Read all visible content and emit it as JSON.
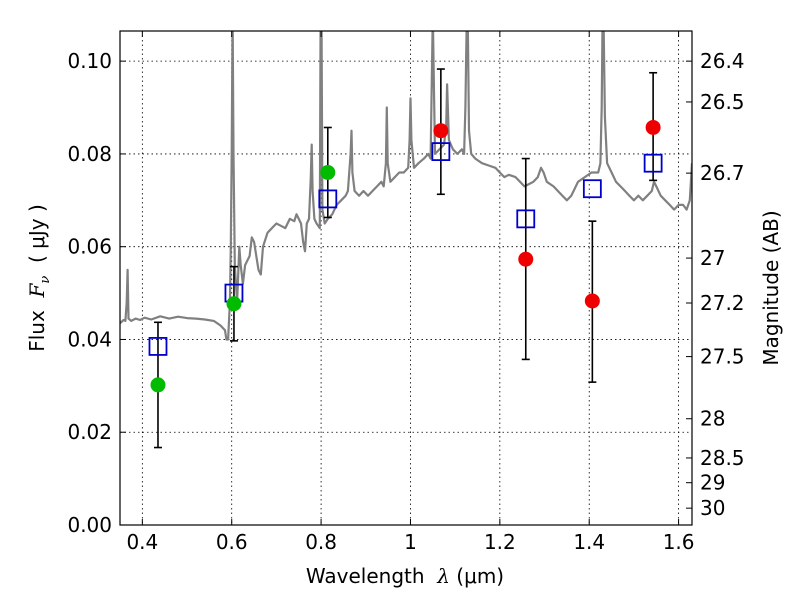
{
  "chart_data": {
    "type": "scatter",
    "xlabel": "Wavelength  λ (μm)",
    "ylabel": "Flux  F_ν  ( μJy )",
    "ylabel_parts": {
      "prefix": "Flux  ",
      "symbol": "F",
      "subscript": "ν",
      "suffix": "  ( μJy )"
    },
    "xlabel_parts": {
      "prefix": "Wavelength  ",
      "symbol": "λ",
      "suffix": " (μm)"
    },
    "y2label": "Magnitude (AB)",
    "xlim": [
      0.35,
      1.63
    ],
    "ylim": [
      0.0,
      0.1065
    ],
    "grid": true,
    "x_ticks": [
      {
        "value": 0.4,
        "label": "0.4"
      },
      {
        "value": 0.6,
        "label": "0.6"
      },
      {
        "value": 0.8,
        "label": "0.8"
      },
      {
        "value": 1.0,
        "label": "1"
      },
      {
        "value": 1.2,
        "label": "1.2"
      },
      {
        "value": 1.4,
        "label": "1.4"
      },
      {
        "value": 1.6,
        "label": "1.6"
      }
    ],
    "y_ticks": [
      {
        "value": 0.0,
        "label": "0.00"
      },
      {
        "value": 0.02,
        "label": "0.02"
      },
      {
        "value": 0.04,
        "label": "0.04"
      },
      {
        "value": 0.06,
        "label": "0.06"
      },
      {
        "value": 0.08,
        "label": "0.08"
      },
      {
        "value": 0.1,
        "label": "0.10"
      }
    ],
    "y2_ticks": [
      {
        "value": 26.4,
        "label": "26.4"
      },
      {
        "value": 26.5,
        "label": "26.5"
      },
      {
        "value": 26.7,
        "label": "26.7"
      },
      {
        "value": 27.0,
        "label": "27"
      },
      {
        "value": 27.2,
        "label": "27.2"
      },
      {
        "value": 27.5,
        "label": "27.5"
      },
      {
        "value": 28.0,
        "label": "28"
      },
      {
        "value": 28.5,
        "label": "28.5"
      },
      {
        "value": 29.0,
        "label": "29"
      },
      {
        "value": 30.0,
        "label": "30"
      }
    ],
    "series": [
      {
        "kind": "line",
        "color": "#808080",
        "points": [
          [
            0.35,
            0.0435
          ],
          [
            0.358,
            0.0442
          ],
          [
            0.362,
            0.044
          ],
          [
            0.365,
            0.048
          ],
          [
            0.367,
            0.055
          ],
          [
            0.369,
            0.0445
          ],
          [
            0.375,
            0.044
          ],
          [
            0.385,
            0.0445
          ],
          [
            0.395,
            0.0442
          ],
          [
            0.405,
            0.0447
          ],
          [
            0.42,
            0.0443
          ],
          [
            0.44,
            0.045
          ],
          [
            0.46,
            0.0445
          ],
          [
            0.48,
            0.0449
          ],
          [
            0.5,
            0.0446
          ],
          [
            0.52,
            0.0445
          ],
          [
            0.54,
            0.0443
          ],
          [
            0.56,
            0.044
          ],
          [
            0.575,
            0.043
          ],
          [
            0.585,
            0.042
          ],
          [
            0.588,
            0.04
          ],
          [
            0.592,
            0.04
          ],
          [
            0.596,
            0.048
          ],
          [
            0.598,
            0.06
          ],
          [
            0.6,
            0.08
          ],
          [
            0.602,
            0.11
          ],
          [
            0.604,
            0.08
          ],
          [
            0.607,
            0.056
          ],
          [
            0.612,
            0.048
          ],
          [
            0.617,
            0.06
          ],
          [
            0.62,
            0.056
          ],
          [
            0.625,
            0.052
          ],
          [
            0.63,
            0.056
          ],
          [
            0.64,
            0.058
          ],
          [
            0.645,
            0.062
          ],
          [
            0.65,
            0.061
          ],
          [
            0.655,
            0.058
          ],
          [
            0.66,
            0.055
          ],
          [
            0.665,
            0.054
          ],
          [
            0.67,
            0.06
          ],
          [
            0.68,
            0.063
          ],
          [
            0.69,
            0.064
          ],
          [
            0.7,
            0.065
          ],
          [
            0.71,
            0.0645
          ],
          [
            0.72,
            0.064
          ],
          [
            0.73,
            0.066
          ],
          [
            0.74,
            0.0655
          ],
          [
            0.745,
            0.067
          ],
          [
            0.75,
            0.066
          ],
          [
            0.755,
            0.065
          ],
          [
            0.76,
            0.061
          ],
          [
            0.764,
            0.059
          ],
          [
            0.768,
            0.065
          ],
          [
            0.773,
            0.066
          ],
          [
            0.777,
            0.075
          ],
          [
            0.779,
            0.082
          ],
          [
            0.781,
            0.072
          ],
          [
            0.785,
            0.066
          ],
          [
            0.79,
            0.065
          ],
          [
            0.797,
            0.064
          ],
          [
            0.799,
            0.11
          ],
          [
            0.801,
            0.11
          ],
          [
            0.803,
            0.068
          ],
          [
            0.808,
            0.065
          ],
          [
            0.815,
            0.066
          ],
          [
            0.825,
            0.067
          ],
          [
            0.835,
            0.069
          ],
          [
            0.845,
            0.07
          ],
          [
            0.855,
            0.071
          ],
          [
            0.86,
            0.072
          ],
          [
            0.866,
            0.08
          ],
          [
            0.868,
            0.085
          ],
          [
            0.87,
            0.076
          ],
          [
            0.875,
            0.072
          ],
          [
            0.885,
            0.071
          ],
          [
            0.895,
            0.072
          ],
          [
            0.905,
            0.071
          ],
          [
            0.915,
            0.072
          ],
          [
            0.925,
            0.073
          ],
          [
            0.935,
            0.074
          ],
          [
            0.94,
            0.073
          ],
          [
            0.945,
            0.078
          ],
          [
            0.947,
            0.09
          ],
          [
            0.949,
            0.078
          ],
          [
            0.955,
            0.074
          ],
          [
            0.965,
            0.075
          ],
          [
            0.975,
            0.076
          ],
          [
            0.985,
            0.076
          ],
          [
            0.995,
            0.077
          ],
          [
            0.998,
            0.083
          ],
          [
            1.0,
            0.092
          ],
          [
            1.002,
            0.083
          ],
          [
            1.008,
            0.077
          ],
          [
            1.018,
            0.078
          ],
          [
            1.03,
            0.079
          ],
          [
            1.04,
            0.08
          ],
          [
            1.045,
            0.079
          ],
          [
            1.05,
            0.11
          ],
          [
            1.055,
            0.08
          ],
          [
            1.065,
            0.081
          ],
          [
            1.075,
            0.082
          ],
          [
            1.08,
            0.086
          ],
          [
            1.082,
            0.095
          ],
          [
            1.086,
            0.083
          ],
          [
            1.095,
            0.081
          ],
          [
            1.105,
            0.08
          ],
          [
            1.115,
            0.081
          ],
          [
            1.12,
            0.08
          ],
          [
            1.123,
            0.09
          ],
          [
            1.126,
            0.11
          ],
          [
            1.128,
            0.11
          ],
          [
            1.131,
            0.085
          ],
          [
            1.136,
            0.08
          ],
          [
            1.145,
            0.079
          ],
          [
            1.16,
            0.078
          ],
          [
            1.175,
            0.0775
          ],
          [
            1.19,
            0.077
          ],
          [
            1.2,
            0.076
          ],
          [
            1.21,
            0.075
          ],
          [
            1.22,
            0.0755
          ],
          [
            1.235,
            0.075
          ],
          [
            1.245,
            0.074
          ],
          [
            1.255,
            0.073
          ],
          [
            1.265,
            0.0735
          ],
          [
            1.275,
            0.074
          ],
          [
            1.285,
            0.075
          ],
          [
            1.292,
            0.077
          ],
          [
            1.298,
            0.076
          ],
          [
            1.305,
            0.074
          ],
          [
            1.32,
            0.073
          ],
          [
            1.33,
            0.072
          ],
          [
            1.34,
            0.071
          ],
          [
            1.35,
            0.07
          ],
          [
            1.36,
            0.071
          ],
          [
            1.365,
            0.072
          ],
          [
            1.375,
            0.074
          ],
          [
            1.39,
            0.075
          ],
          [
            1.405,
            0.076
          ],
          [
            1.42,
            0.076
          ],
          [
            1.425,
            0.078
          ],
          [
            1.428,
            0.09
          ],
          [
            1.43,
            0.11
          ],
          [
            1.432,
            0.11
          ],
          [
            1.435,
            0.088
          ],
          [
            1.44,
            0.078
          ],
          [
            1.45,
            0.076
          ],
          [
            1.46,
            0.074
          ],
          [
            1.47,
            0.073
          ],
          [
            1.48,
            0.072
          ],
          [
            1.49,
            0.071
          ],
          [
            1.5,
            0.07
          ],
          [
            1.51,
            0.071
          ],
          [
            1.52,
            0.07
          ],
          [
            1.53,
            0.071
          ],
          [
            1.54,
            0.072
          ],
          [
            1.545,
            0.074
          ],
          [
            1.55,
            0.073
          ],
          [
            1.56,
            0.071
          ],
          [
            1.57,
            0.07
          ],
          [
            1.58,
            0.069
          ],
          [
            1.59,
            0.068
          ],
          [
            1.6,
            0.069
          ],
          [
            1.61,
            0.069
          ],
          [
            1.618,
            0.068
          ],
          [
            1.625,
            0.07
          ],
          [
            1.63,
            0.078
          ]
        ]
      },
      {
        "kind": "open-squares",
        "color": "#0000cc",
        "points": [
          [
            0.435,
            0.0385
          ],
          [
            0.605,
            0.05
          ],
          [
            0.815,
            0.0703
          ],
          [
            1.068,
            0.0805
          ],
          [
            1.258,
            0.066
          ],
          [
            1.407,
            0.0725
          ],
          [
            1.543,
            0.078
          ]
        ]
      },
      {
        "kind": "filled-circles",
        "color": "#00bb00",
        "points": [
          [
            0.435,
            0.0302
          ],
          [
            0.605,
            0.0477
          ],
          [
            0.815,
            0.076
          ]
        ]
      },
      {
        "kind": "filled-circles",
        "color": "#ee0000",
        "points": [
          [
            1.068,
            0.085
          ],
          [
            1.258,
            0.0573
          ],
          [
            1.407,
            0.0483
          ],
          [
            1.543,
            0.0857
          ]
        ]
      },
      {
        "kind": "error-bars",
        "color": "#000000",
        "points": [
          {
            "x": 0.435,
            "low": 0.0167,
            "high": 0.0437
          },
          {
            "x": 0.605,
            "low": 0.0397,
            "high": 0.0557
          },
          {
            "x": 0.815,
            "low": 0.0663,
            "high": 0.0857
          },
          {
            "x": 1.068,
            "low": 0.0713,
            "high": 0.0983
          },
          {
            "x": 1.258,
            "low": 0.0357,
            "high": 0.079
          },
          {
            "x": 1.407,
            "low": 0.0308,
            "high": 0.0655
          },
          {
            "x": 1.543,
            "low": 0.0743,
            "high": 0.0975
          }
        ]
      }
    ]
  }
}
